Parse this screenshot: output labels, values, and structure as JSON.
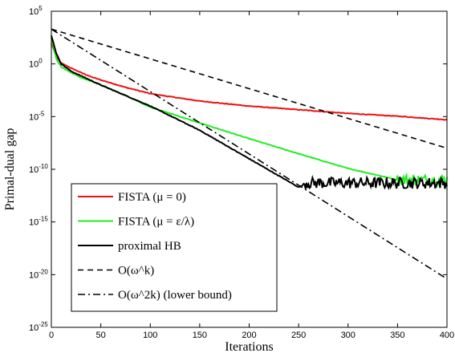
{
  "chart_data": {
    "type": "line",
    "title": "",
    "xlabel": "Iterations",
    "ylabel": "Primal-dual gap",
    "xlim": [
      0,
      400
    ],
    "ylim": [
      1e-25,
      100000.0
    ],
    "yscale": "log",
    "grid": false,
    "legend_position": "bottom-left",
    "x_ticks": [
      0,
      50,
      100,
      150,
      200,
      250,
      300,
      350,
      400
    ],
    "y_ticks": [
      {
        "base": "10",
        "exp": "-25",
        "value": 1e-25
      },
      {
        "base": "10",
        "exp": "-20",
        "value": 1e-20
      },
      {
        "base": "10",
        "exp": "-15",
        "value": 1e-15
      },
      {
        "base": "10",
        "exp": "-10",
        "value": 1e-10
      },
      {
        "base": "10",
        "exp": "-5",
        "value": 1e-05
      },
      {
        "base": "10",
        "exp": "0",
        "value": 1
      },
      {
        "base": "10",
        "exp": "5",
        "value": 100000.0
      }
    ],
    "series": [
      {
        "name": "FISTA (μ = 0)",
        "color": "#ee1111",
        "style": "solid",
        "x": [
          0,
          5,
          10,
          20,
          30,
          40,
          50,
          75,
          100,
          150,
          200,
          250,
          300,
          350,
          400
        ],
        "y": [
          100.0,
          5,
          1.2,
          0.4,
          0.15,
          0.06,
          0.03,
          0.006,
          0.0015,
          0.0003,
          0.0001,
          4.5e-05,
          2e-05,
          1.1e-05,
          5e-06
        ]
      },
      {
        "name": "FISTA (μ = ε/λ)",
        "color": "#22ee22",
        "style": "solid",
        "x": [
          0,
          5,
          10,
          20,
          30,
          50,
          75,
          100,
          150,
          200,
          250,
          300,
          350,
          360,
          380,
          400
        ],
        "y": [
          300.0,
          3,
          0.5,
          0.15,
          0.05,
          0.01,
          0.001,
          8e-05,
          2.5e-06,
          8e-08,
          3e-09,
          1.2e-10,
          1e-11,
          6e-12,
          5e-12,
          5e-12
        ],
        "noise_from_x": 350,
        "noise_level": 1e-11
      },
      {
        "name": "proximal HB",
        "color": "#000000",
        "style": "solid",
        "x": [
          0,
          5,
          10,
          20,
          50,
          100,
          150,
          200,
          250,
          260,
          300,
          350,
          400
        ],
        "y": [
          500.0,
          10,
          1,
          0.2,
          0.01,
          0.0001,
          5e-07,
          1e-09,
          2e-12,
          5e-12,
          5e-12,
          5e-12,
          1e-11
        ],
        "noise_from_x": 255,
        "noise_level": 5e-12
      },
      {
        "name": "O(ω^k)",
        "color": "#000000",
        "style": "dashed",
        "x": [
          0,
          400
        ],
        "y": [
          2000.0,
          1e-08
        ]
      },
      {
        "name": "O(ω^2k) (lower bound)",
        "color": "#000000",
        "style": "dashdot",
        "x": [
          0,
          400
        ],
        "y": [
          2000.0,
          4e-21
        ]
      }
    ]
  }
}
